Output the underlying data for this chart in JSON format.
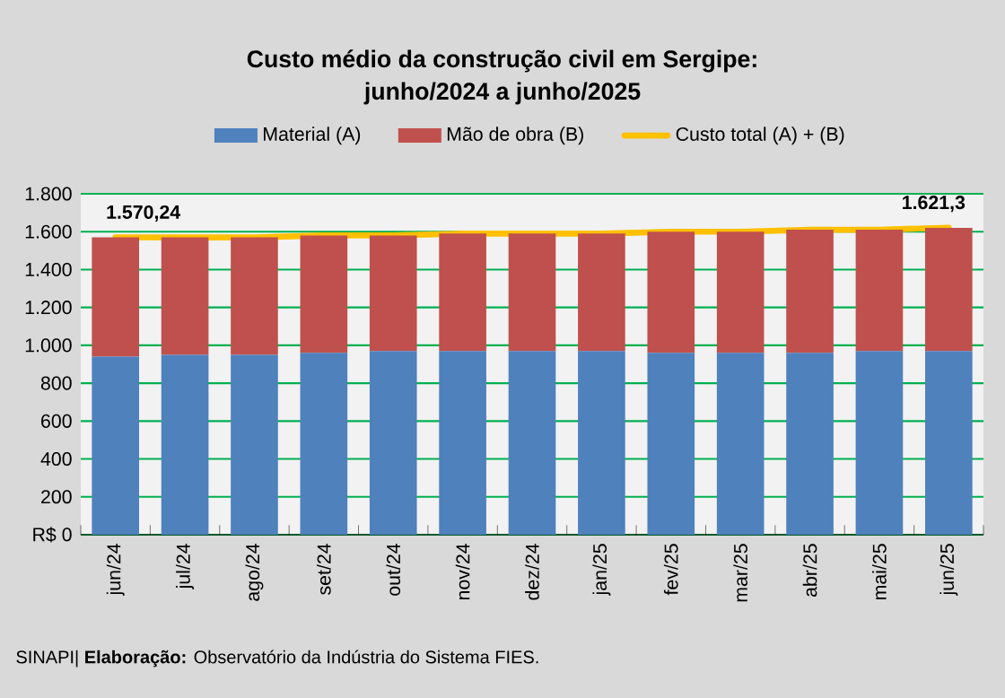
{
  "chart_data": {
    "type": "bar",
    "stacked": true,
    "title": "Custo médio da construção civil em Sergipe:",
    "subtitle": "junho/2024 a junho/2025",
    "categories": [
      "jun/24",
      "jul/24",
      "ago/24",
      "set/24",
      "out/24",
      "nov/24",
      "dez/24",
      "jan/25",
      "fev/25",
      "mar/25",
      "abr/25",
      "mai/25",
      "jun/25"
    ],
    "series": [
      {
        "name": "Material (A)",
        "color": "#4f81bd",
        "values": [
          940,
          950,
          950,
          960,
          970,
          970,
          970,
          970,
          960,
          960,
          960,
          970,
          970
        ]
      },
      {
        "name": "Mão de obra (B)",
        "color": "#c0504d",
        "values": [
          630,
          620,
          620,
          620,
          610,
          620,
          620,
          620,
          640,
          640,
          650,
          640,
          650
        ]
      },
      {
        "name": "Custo total (A) + (B)",
        "type": "line",
        "color": "#ffc000",
        "values": [
          1570.24,
          1570,
          1570,
          1580,
          1580,
          1590,
          1590,
          1590,
          1600,
          1600,
          1610,
          1610,
          1621.3
        ],
        "value_labels": [
          "1.570,24",
          null,
          null,
          null,
          null,
          null,
          null,
          null,
          null,
          null,
          null,
          null,
          "1.621,3"
        ]
      }
    ],
    "ylim": [
      0,
      1800
    ],
    "yticks": [
      {
        "value": 0,
        "label": "R$ 0"
      },
      200,
      400,
      600,
      800,
      {
        "value": 1000,
        "label": "1.000"
      },
      {
        "value": 1200,
        "label": "1.200"
      },
      {
        "value": 1400,
        "label": "1.400"
      },
      {
        "value": 1600,
        "label": "1.600"
      },
      {
        "value": 1800,
        "label": "1.800"
      }
    ],
    "grid": "y",
    "legend": "top",
    "annotations": [
      "SINAPI| **Elaboração:** Observatório da Indústria do Sistema FIES."
    ]
  }
}
